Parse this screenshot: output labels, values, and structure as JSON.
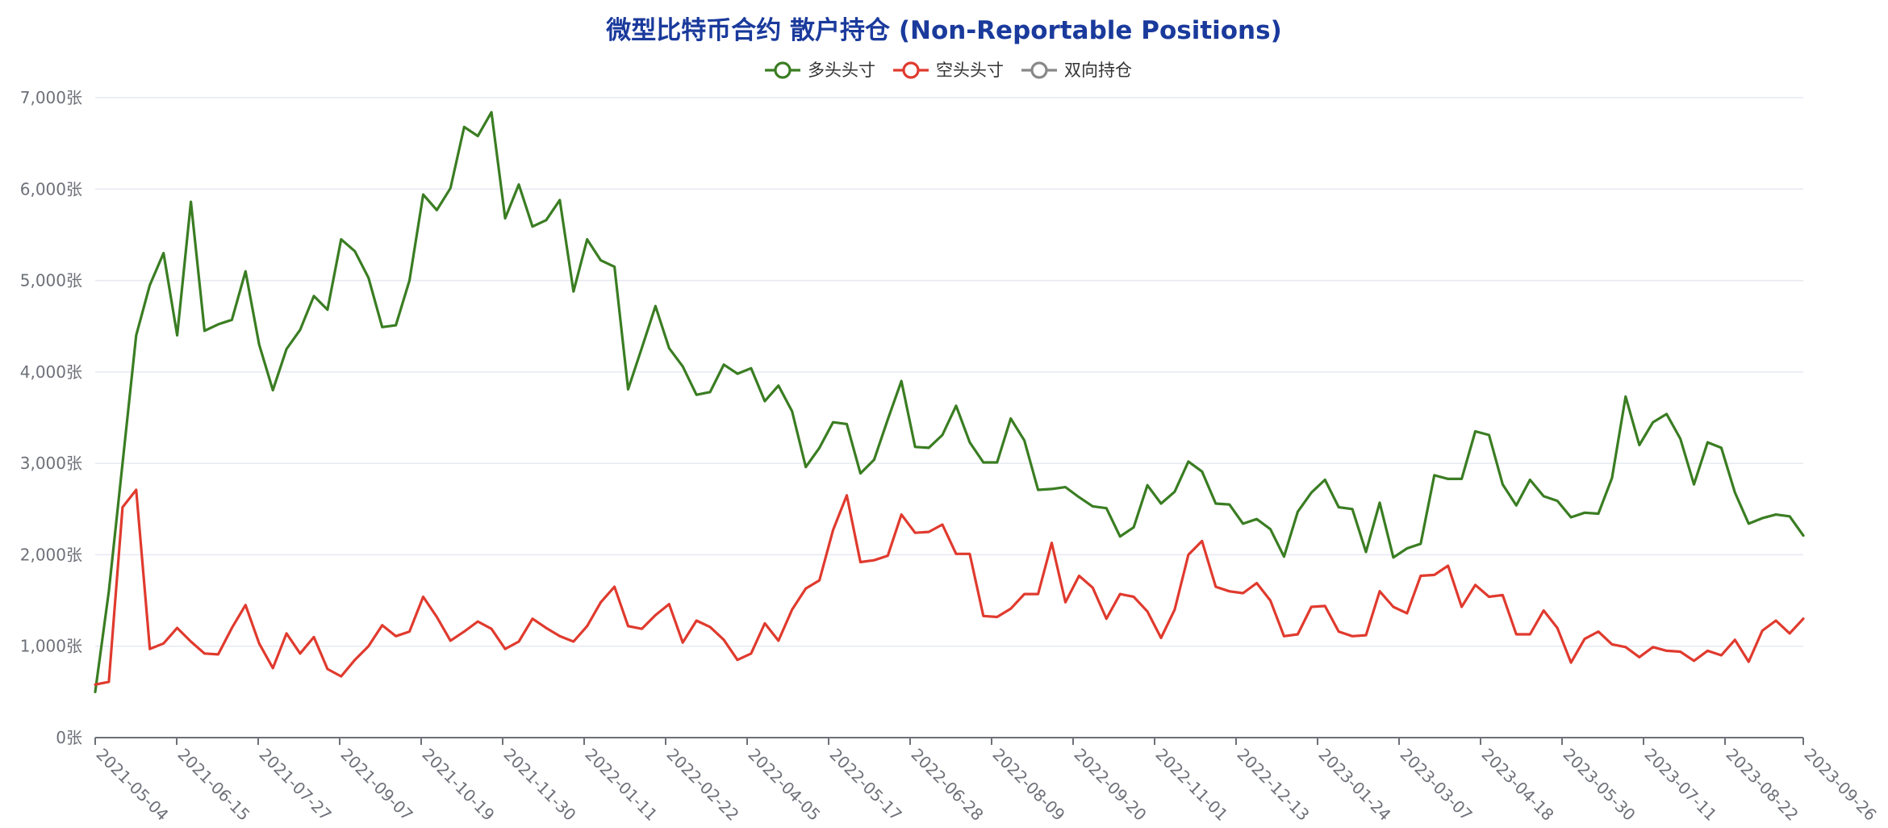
{
  "chart_data": {
    "type": "line",
    "title": "微型比特币合约 散户持仓 (Non-Reportable Positions)",
    "ylim": [
      0,
      7000
    ],
    "yunit": "张",
    "yticks": [
      "0张",
      "1,000张",
      "2,000张",
      "3,000张",
      "4,000张",
      "5,000张",
      "6,000张",
      "7,000张"
    ],
    "ytick_values": [
      0,
      1000,
      2000,
      3000,
      4000,
      5000,
      6000,
      7000
    ],
    "grid": true,
    "legend_position": "top-center",
    "xtick_labels": [
      "2021-05-04",
      "2021-06-15",
      "2021-07-27",
      "2021-09-07",
      "2021-10-19",
      "2021-11-30",
      "2022-01-11",
      "2022-02-22",
      "2022-04-05",
      "2022-05-17",
      "2022-06-28",
      "2022-08-09",
      "2022-09-20",
      "2022-11-01",
      "2022-12-13",
      "2023-01-24",
      "2023-03-07",
      "2023-04-18",
      "2023-05-30",
      "2023-07-11",
      "2023-08-22",
      "2023-09-26"
    ],
    "series": [
      {
        "name": "多头头寸",
        "color": "#3a7d22",
        "values": [
          500,
          1600,
          3000,
          4400,
          4950,
          5300,
          4400,
          5860,
          4450,
          4520,
          4570,
          5100,
          4300,
          3800,
          4250,
          4460,
          4830,
          4680,
          5450,
          5320,
          5030,
          4490,
          4510,
          5000,
          5940,
          5770,
          6010,
          6680,
          6580,
          6840,
          5680,
          6050,
          5590,
          5660,
          5880,
          4880,
          5450,
          5220,
          5150,
          3810,
          4260,
          4720,
          4260,
          4060,
          3750,
          3780,
          4080,
          3980,
          4040,
          3680,
          3850,
          3570,
          2960,
          3170,
          3450,
          3430,
          2890,
          3040,
          3480,
          3900,
          3180,
          3170,
          3310,
          3630,
          3230,
          3010,
          3010,
          3490,
          3250,
          2710,
          2720,
          2740,
          2630,
          2530,
          2510,
          2200,
          2300,
          2760,
          2560,
          2690,
          3020,
          2910,
          2560,
          2550,
          2340,
          2390,
          2280,
          1980,
          2470,
          2680,
          2820,
          2520,
          2500,
          2030,
          2570,
          1970,
          2070,
          2120,
          2870,
          2830,
          2830,
          3350,
          3310,
          2770,
          2540,
          2820,
          2640,
          2590,
          2410,
          2460,
          2450,
          2840,
          3730,
          3200,
          3450,
          3540,
          3270,
          2770,
          3230,
          3170,
          2680,
          2340,
          2400,
          2440,
          2420,
          2210
        ]
      },
      {
        "name": "空头头寸",
        "color": "#e03a2e",
        "values": [
          580,
          610,
          2520,
          2710,
          970,
          1030,
          1200,
          1050,
          920,
          910,
          1200,
          1450,
          1030,
          760,
          1140,
          920,
          1100,
          750,
          670,
          850,
          1000,
          1230,
          1110,
          1160,
          1540,
          1320,
          1060,
          1160,
          1270,
          1190,
          970,
          1050,
          1300,
          1200,
          1110,
          1050,
          1220,
          1480,
          1650,
          1220,
          1190,
          1340,
          1460,
          1040,
          1280,
          1210,
          1070,
          850,
          920,
          1250,
          1060,
          1400,
          1630,
          1720,
          2270,
          2650,
          1920,
          1940,
          1990,
          2440,
          2240,
          2250,
          2330,
          2010,
          2010,
          1330,
          1320,
          1410,
          1570,
          1570,
          2130,
          1480,
          1770,
          1640,
          1300,
          1570,
          1540,
          1380,
          1090,
          1400,
          2000,
          2150,
          1650,
          1600,
          1580,
          1690,
          1500,
          1110,
          1130,
          1430,
          1440,
          1160,
          1110,
          1120,
          1600,
          1430,
          1360,
          1770,
          1780,
          1880,
          1430,
          1670,
          1540,
          1560,
          1130,
          1130,
          1390,
          1200,
          820,
          1080,
          1160,
          1020,
          990,
          880,
          990,
          950,
          940,
          840,
          950,
          900,
          1070,
          830,
          1170,
          1280,
          1140,
          1300
        ]
      },
      {
        "name": "双向持仓",
        "color": "#888888",
        "values": []
      }
    ]
  }
}
